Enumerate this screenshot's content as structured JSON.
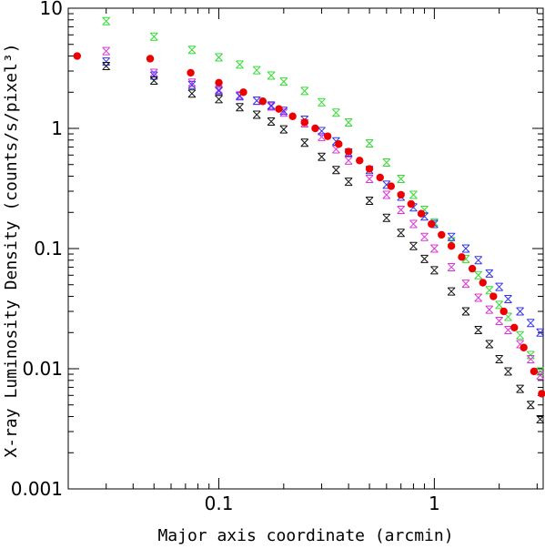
{
  "chart_data": {
    "type": "scatter",
    "title": "",
    "xlabel": "Major axis coordinate (arcmin)",
    "ylabel": "X-ray Luminosity Density (counts/s/pixel³)",
    "x_scale": "log",
    "y_scale": "log",
    "xlim": [
      0.02,
      3.2
    ],
    "ylim": [
      0.001,
      10
    ],
    "x_ticks": [
      {
        "value": 0.1,
        "label": "0.1"
      },
      {
        "value": 1,
        "label": "1"
      }
    ],
    "y_ticks": [
      {
        "value": 10,
        "label": "10"
      },
      {
        "value": 1,
        "label": "1"
      },
      {
        "value": 0.1,
        "label": "0.1"
      },
      {
        "value": 0.01,
        "label": "0.01"
      },
      {
        "value": 0.001,
        "label": "0.001"
      }
    ],
    "grid": false,
    "legend": "none",
    "series": [
      {
        "color": "#33dd33",
        "marker": "x",
        "x": [
          0.03,
          0.05,
          0.075,
          0.1,
          0.125,
          0.15,
          0.175,
          0.2,
          0.25,
          0.3,
          0.35,
          0.4,
          0.5,
          0.6,
          0.7,
          0.8,
          0.9,
          1.0,
          1.2,
          1.4,
          1.6,
          1.8,
          2.0,
          2.2,
          2.5,
          2.8,
          3.1
        ],
        "y": [
          7.8,
          5.8,
          4.5,
          3.9,
          3.4,
          3.05,
          2.75,
          2.45,
          2.05,
          1.65,
          1.35,
          1.12,
          0.75,
          0.52,
          0.38,
          0.28,
          0.21,
          0.165,
          0.115,
          0.082,
          0.06,
          0.045,
          0.034,
          0.027,
          0.019,
          0.013,
          0.0095
        ]
      },
      {
        "color": "#dd33dd",
        "marker": "x",
        "x": [
          0.03,
          0.05,
          0.075,
          0.1,
          0.125,
          0.15,
          0.175,
          0.2,
          0.25,
          0.3,
          0.35,
          0.4,
          0.5,
          0.6,
          0.7,
          0.8,
          0.9,
          1.0,
          1.2,
          1.4,
          1.6,
          1.8,
          2.0,
          2.2,
          2.5,
          2.8,
          3.1
        ],
        "y": [
          4.4,
          2.9,
          2.4,
          2.1,
          1.88,
          1.7,
          1.52,
          1.35,
          1.1,
          0.85,
          0.67,
          0.54,
          0.38,
          0.28,
          0.21,
          0.16,
          0.125,
          0.1,
          0.07,
          0.051,
          0.039,
          0.031,
          0.025,
          0.021,
          0.016,
          0.012,
          0.0088
        ]
      },
      {
        "color": "#3333ee",
        "marker": "x",
        "x": [
          0.03,
          0.05,
          0.075,
          0.1,
          0.125,
          0.15,
          0.175,
          0.2,
          0.25,
          0.3,
          0.35,
          0.4,
          0.5,
          0.6,
          0.7,
          0.8,
          0.9,
          1.0,
          1.2,
          1.4,
          1.6,
          1.8,
          2.0,
          2.2,
          2.5,
          2.8,
          3.1
        ],
        "y": [
          3.6,
          2.75,
          2.3,
          2.05,
          1.85,
          1.7,
          1.55,
          1.4,
          1.18,
          0.95,
          0.78,
          0.63,
          0.45,
          0.34,
          0.27,
          0.22,
          0.185,
          0.16,
          0.125,
          0.1,
          0.08,
          0.062,
          0.048,
          0.038,
          0.03,
          0.024,
          0.02
        ]
      },
      {
        "color": "#111111",
        "marker": "x",
        "x": [
          0.03,
          0.05,
          0.075,
          0.1,
          0.125,
          0.15,
          0.175,
          0.2,
          0.25,
          0.3,
          0.35,
          0.4,
          0.5,
          0.6,
          0.7,
          0.8,
          0.9,
          1.0,
          1.2,
          1.4,
          1.6,
          1.8,
          2.0,
          2.2,
          2.5,
          2.8,
          3.1
        ],
        "y": [
          3.3,
          2.5,
          1.95,
          1.75,
          1.5,
          1.3,
          1.14,
          0.98,
          0.76,
          0.58,
          0.45,
          0.36,
          0.25,
          0.18,
          0.135,
          0.105,
          0.082,
          0.066,
          0.044,
          0.03,
          0.021,
          0.016,
          0.012,
          0.0095,
          0.0068,
          0.005,
          0.0038
        ]
      },
      {
        "color": "#ee0000",
        "marker": "dot",
        "x": [
          0.022,
          0.048,
          0.074,
          0.1,
          0.13,
          0.16,
          0.19,
          0.22,
          0.25,
          0.28,
          0.32,
          0.36,
          0.4,
          0.45,
          0.5,
          0.56,
          0.63,
          0.7,
          0.78,
          0.87,
          0.97,
          1.08,
          1.2,
          1.34,
          1.5,
          1.68,
          1.88,
          2.1,
          2.35,
          2.6,
          2.9,
          3.15
        ],
        "y": [
          4.0,
          3.8,
          2.9,
          2.4,
          2.0,
          1.68,
          1.45,
          1.26,
          1.12,
          1.0,
          0.86,
          0.74,
          0.64,
          0.54,
          0.46,
          0.39,
          0.33,
          0.28,
          0.235,
          0.195,
          0.16,
          0.13,
          0.105,
          0.085,
          0.068,
          0.052,
          0.04,
          0.03,
          0.022,
          0.015,
          0.0095,
          0.0062
        ]
      }
    ]
  }
}
